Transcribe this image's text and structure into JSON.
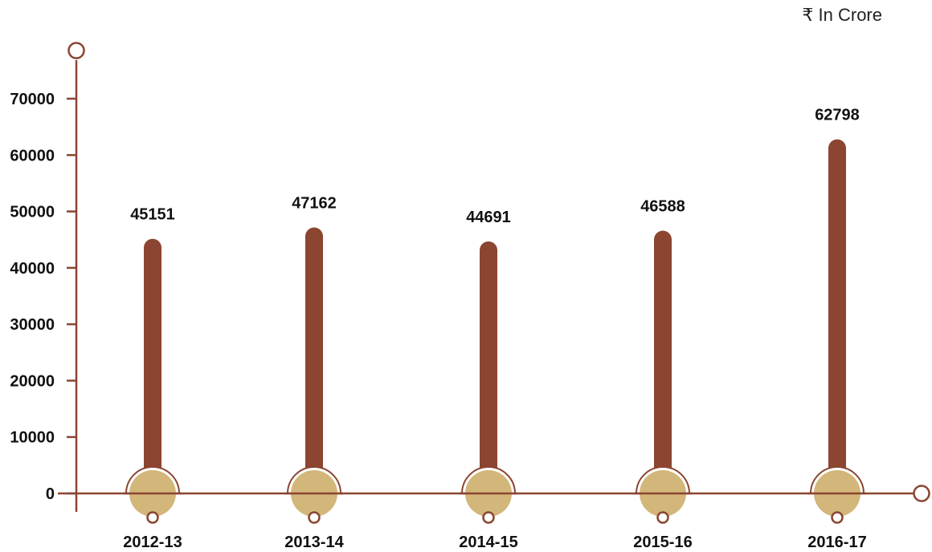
{
  "chart_data": {
    "type": "bar",
    "unit_label": "₹ In Crore",
    "categories": [
      "2012-13",
      "2013-14",
      "2014-15",
      "2015-16",
      "2016-17"
    ],
    "values": [
      45151,
      47162,
      44691,
      46588,
      62798
    ],
    "yticks": [
      0,
      10000,
      20000,
      30000,
      40000,
      50000,
      60000,
      70000
    ],
    "ylim": [
      0,
      76000
    ],
    "colors": {
      "axis": "#8b4530",
      "bar": "#8b4530",
      "base_disc": "#d2b67a",
      "text": "#111111"
    }
  }
}
